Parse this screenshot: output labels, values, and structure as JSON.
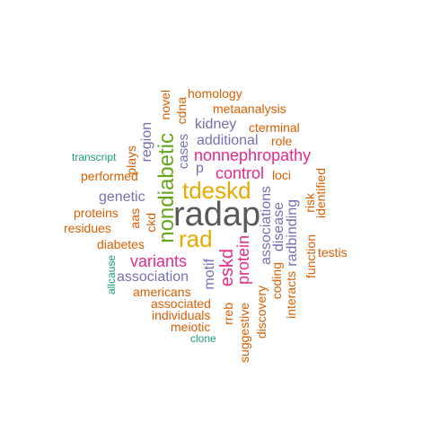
{
  "palette": {
    "gray": "#595959",
    "orange": "#d95f02",
    "green": "#1b9e77",
    "purple": "#7570b3",
    "magenta": "#e7298a",
    "lime": "#66a61e",
    "gold": "#e6ab02"
  },
  "words": {
    "radap": "radap",
    "tdeskd": "tdeskd",
    "rad": "rad",
    "nondiabetic": "nondiabetic",
    "nonnephropathy": "nonnephropathy",
    "variants": "variants",
    "control": "control",
    "eskd": "eskd",
    "protein": "protein",
    "region": "region",
    "association": "association",
    "associations": "associations",
    "radbinding": "radbinding",
    "kidney": "kidney",
    "additional": "additional",
    "homology": "homology",
    "metaanalysis": "metaanalysis",
    "cterminal": "cterminal",
    "role": "role",
    "loci": "loci",
    "genetic": "genetic",
    "cases": "cases",
    "p": "p",
    "motif": "motif",
    "disease": "disease",
    "coding": "coding",
    "novel": "novel",
    "cdna": "cdna",
    "transcript": "transcript",
    "plays": "plays",
    "performed": "performed",
    "proteins": "proteins",
    "aas": "aas",
    "residues": "residues",
    "ckd": "ckd",
    "diabetes": "diabetes",
    "allcause": "allcause",
    "americans": "americans",
    "associated": "associated",
    "individuals": "individuals",
    "meiotic": "meiotic",
    "clone": "clone",
    "rreb": "rreb",
    "suggestive": "suggestive",
    "discovery": "discovery",
    "interacts": "interacts",
    "function": "function",
    "risk": "risk",
    "identified": "identified",
    "testis": "testis"
  }
}
